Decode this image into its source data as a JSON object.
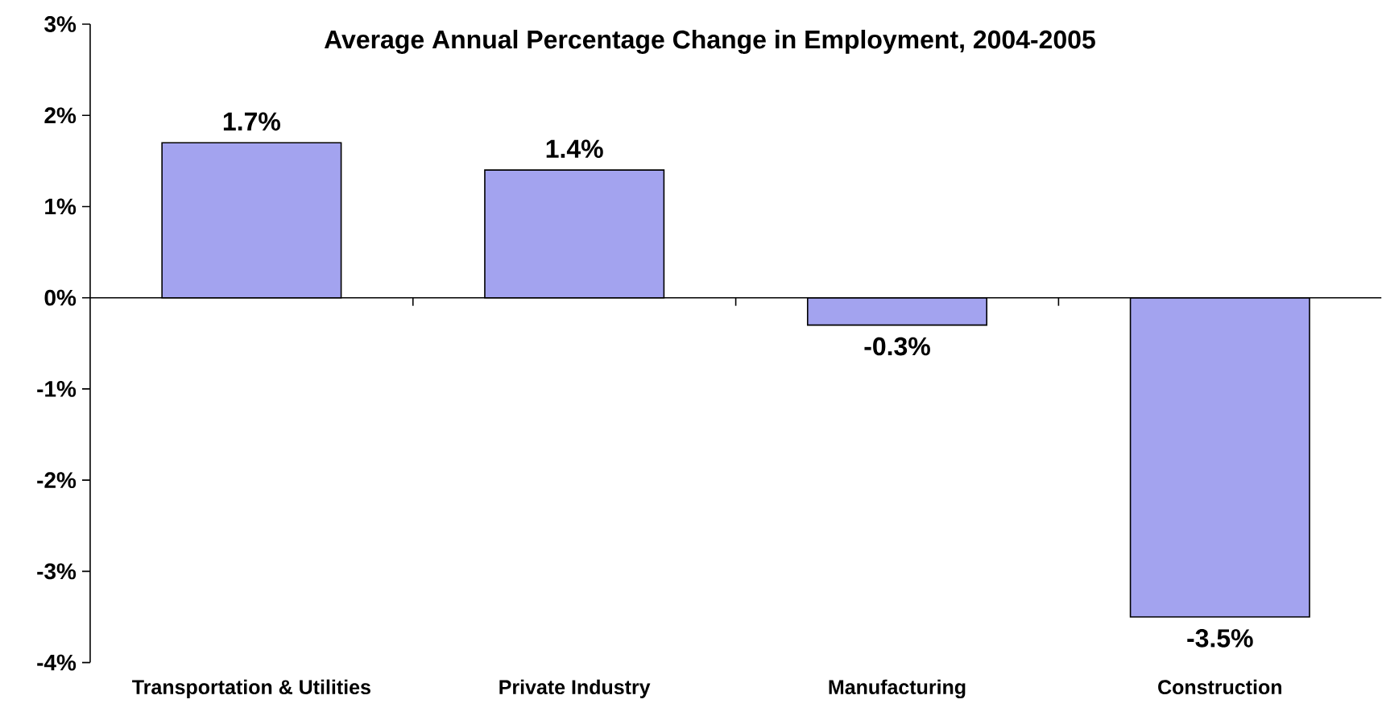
{
  "chart_data": {
    "type": "bar",
    "title": "Average Annual Percentage Change in Employment, 2004-2005",
    "categories": [
      "Transportation & Utilities",
      "Private Industry",
      "Manufacturing",
      "Construction"
    ],
    "values": [
      1.7,
      1.4,
      -0.3,
      -3.5
    ],
    "value_labels": [
      "1.7%",
      "1.4%",
      "-0.3%",
      "-3.5%"
    ],
    "color": "#a3a3ef",
    "ylim": [
      -4,
      3
    ],
    "yticks": [
      {
        "value": -4,
        "label": "-4%"
      },
      {
        "value": -3,
        "label": "-3%"
      },
      {
        "value": -2,
        "label": "-2%"
      },
      {
        "value": -1,
        "label": "-1%"
      },
      {
        "value": 0,
        "label": "0%"
      },
      {
        "value": 1,
        "label": "1%"
      },
      {
        "value": 2,
        "label": "2%"
      },
      {
        "value": 3,
        "label": "3%"
      }
    ]
  }
}
